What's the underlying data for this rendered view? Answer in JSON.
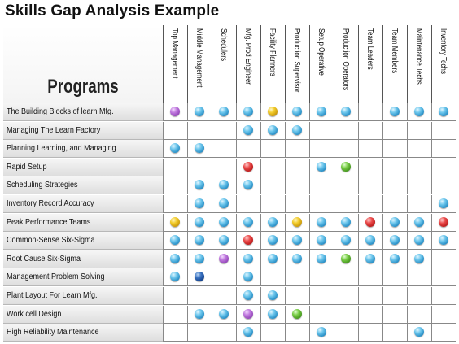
{
  "title": "Skills Gap Analysis Example",
  "programs_label": "Programs",
  "columns": [
    "Top Management",
    "Middle Management",
    "Schedulers",
    "Mfg. Prod Engineer",
    "Facility Planners",
    "Production Supervisor",
    "Setup Operative",
    "Production Operators",
    "Team Leaders",
    "Team Members",
    "Maintenance Techs",
    "Inventory Techs"
  ],
  "rows": [
    {
      "label": "The Building Blocks of learn Mfg.",
      "marks": [
        "purple",
        "blue",
        "blue",
        "blue",
        "yellow",
        "blue",
        "blue",
        "blue",
        "",
        "blue",
        "blue",
        "blue"
      ]
    },
    {
      "label": "Managing The Learn Factory",
      "marks": [
        "",
        "",
        "",
        "blue",
        "blue",
        "blue",
        "",
        "",
        "",
        "",
        "",
        ""
      ]
    },
    {
      "label": "Planning Learning, and Managing",
      "marks": [
        "blue",
        "blue",
        "",
        "",
        "",
        "",
        "",
        "",
        "",
        "",
        "",
        ""
      ]
    },
    {
      "label": "Rapid Setup",
      "marks": [
        "",
        "",
        "",
        "red",
        "",
        "",
        "blue",
        "green",
        "",
        "",
        "",
        ""
      ]
    },
    {
      "label": "Scheduling Strategies",
      "marks": [
        "",
        "blue",
        "blue",
        "blue",
        "",
        "",
        "",
        "",
        "",
        "",
        "",
        ""
      ]
    },
    {
      "label": "Inventory Record Accuracy",
      "marks": [
        "",
        "blue",
        "blue",
        "",
        "",
        "",
        "",
        "",
        "",
        "",
        "",
        "blue"
      ]
    },
    {
      "label": "Peak Performance Teams",
      "marks": [
        "yellow",
        "blue",
        "blue",
        "blue",
        "blue",
        "yellow",
        "blue",
        "blue",
        "red",
        "blue",
        "blue",
        "red"
      ]
    },
    {
      "label": "Common-Sense Six-Sigma",
      "marks": [
        "blue",
        "blue",
        "blue",
        "red",
        "blue",
        "blue",
        "blue",
        "blue",
        "blue",
        "blue",
        "blue",
        "blue"
      ]
    },
    {
      "label": "Root Cause Six-Sigma",
      "marks": [
        "blue",
        "blue",
        "purple",
        "blue",
        "blue",
        "blue",
        "blue",
        "green",
        "blue",
        "blue",
        "blue",
        ""
      ]
    },
    {
      "label": "Management Problem Solving",
      "marks": [
        "blue",
        "dark",
        "",
        "blue",
        "",
        "",
        "",
        "",
        "",
        "",
        "",
        ""
      ]
    },
    {
      "label": "Plant Layout For Learn Mfg.",
      "marks": [
        "",
        "",
        "",
        "blue",
        "blue",
        "",
        "",
        "",
        "",
        "",
        "",
        ""
      ]
    },
    {
      "label": "Work cell Design",
      "marks": [
        "",
        "blue",
        "blue",
        "purple",
        "blue",
        "green",
        "",
        "",
        "",
        "",
        "",
        ""
      ]
    },
    {
      "label": "High Reliability Maintenance",
      "marks": [
        "",
        "",
        "",
        "blue",
        "",
        "",
        "blue",
        "",
        "",
        "",
        "blue",
        ""
      ]
    }
  ]
}
